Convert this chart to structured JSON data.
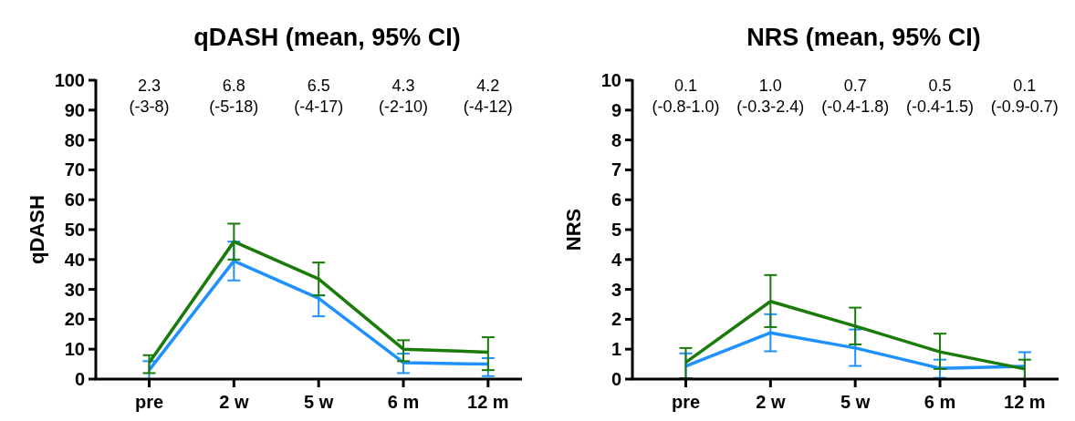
{
  "chart_data": [
    {
      "type": "line",
      "title": "qDASH (mean, 95% CI)",
      "ylabel": "qDASH",
      "categories": [
        "pre",
        "2 w",
        "5 w",
        "6 m",
        "12 m"
      ],
      "ylim": [
        0,
        100
      ],
      "yticks": [
        0,
        10,
        20,
        30,
        40,
        50,
        60,
        70,
        80,
        90,
        100
      ],
      "grid": false,
      "marker": "none",
      "line_style": "solid",
      "series": [
        {
          "color": "#1e90ff",
          "values": [
            3,
            39.5,
            27,
            5.5,
            5
          ],
          "errors": [
            [
              0,
              6
            ],
            [
              33,
              46
            ],
            [
              21,
              28
            ],
            [
              2,
              8.5
            ],
            [
              1,
              7
            ]
          ]
        },
        {
          "color": "#1a7a0a",
          "values": [
            5.5,
            46,
            33.5,
            10,
            9
          ],
          "errors": [
            [
              2,
              8
            ],
            [
              40,
              52
            ],
            [
              28,
              39
            ],
            [
              6,
              13
            ],
            [
              3,
              14
            ]
          ]
        }
      ],
      "annotations": [
        "2.3\n(-3-8)",
        "6.8\n(-5-18)",
        "6.5\n(-4-17)",
        "4.3\n(-2-10)",
        "4.2\n(-4-12)"
      ]
    },
    {
      "type": "line",
      "title": "NRS (mean, 95% CI)",
      "ylabel": "NRS",
      "categories": [
        "pre",
        "2 w",
        "5 w",
        "6 m",
        "12 m"
      ],
      "ylim": [
        0,
        10
      ],
      "yticks": [
        0,
        1,
        2,
        3,
        4,
        5,
        6,
        7,
        8,
        9,
        10
      ],
      "grid": false,
      "marker": "none",
      "line_style": "solid",
      "series": [
        {
          "color": "#1e90ff",
          "values": [
            0.43,
            1.55,
            1.04,
            0.36,
            0.43
          ],
          "errors": [
            [
              0,
              0.86
            ],
            [
              0.93,
              2.17
            ],
            [
              0.44,
              1.66
            ],
            [
              0.04,
              0.65
            ],
            [
              0,
              0.9
            ]
          ]
        },
        {
          "color": "#1a7a0a",
          "values": [
            0.56,
            2.6,
            1.77,
            0.91,
            0.34
          ],
          "errors": [
            [
              0.03,
              1.04
            ],
            [
              1.74,
              3.48
            ],
            [
              1.16,
              2.39
            ],
            [
              0.34,
              1.52
            ],
            [
              0,
              0.65
            ]
          ]
        }
      ],
      "annotations": [
        "0.1\n(-0.8-1.0)",
        "1.0\n(-0.3-2.4)",
        "0.7\n(-0.4-1.8)",
        "0.5\n(-0.4-1.5)",
        "0.1\n(-0.9-0.7)"
      ]
    }
  ]
}
